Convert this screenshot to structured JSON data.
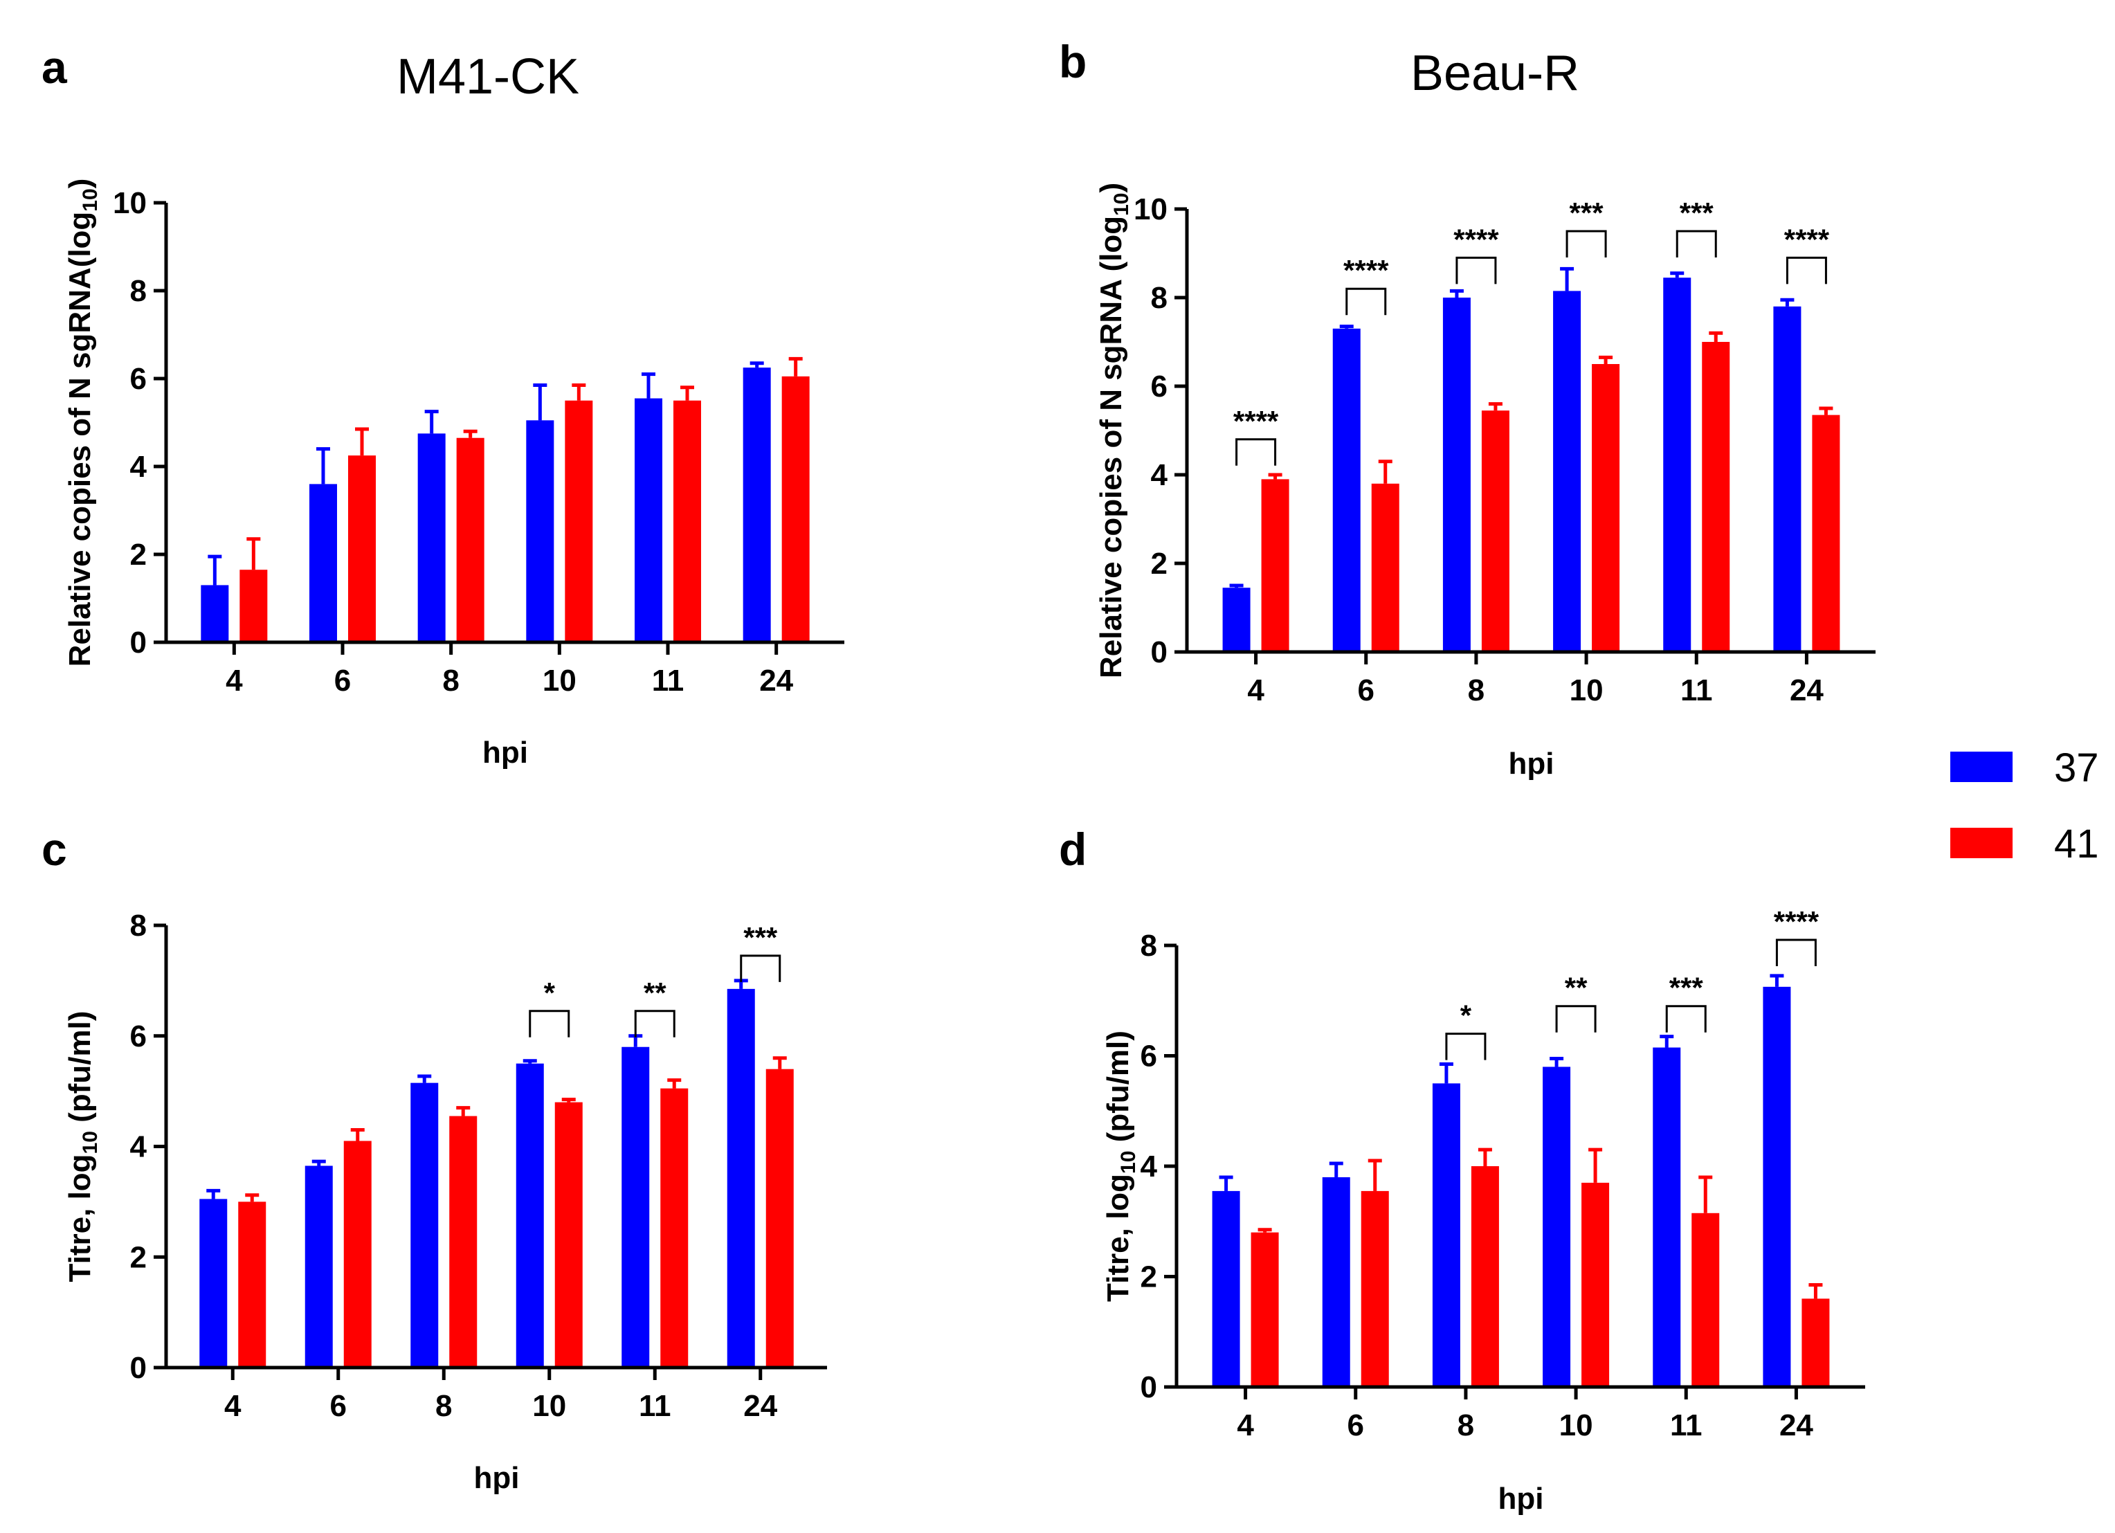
{
  "legend": {
    "items": [
      {
        "label": "37",
        "color": "#0000ff"
      },
      {
        "label": "41",
        "color": "#ff0000"
      }
    ]
  },
  "chart_data": [
    {
      "id": "a",
      "letter": "a",
      "type": "bar",
      "title": "M41-CK",
      "xlabel": "hpi",
      "ylabel": "Relative copies of N sgRNA(log",
      "ylabel_sub": "10",
      "ylabel_end": ")",
      "ylim": [
        0,
        10
      ],
      "yticks": [
        0,
        2,
        4,
        6,
        8,
        10
      ],
      "categories": [
        "4",
        "6",
        "8",
        "10",
        "11",
        "24"
      ],
      "series": [
        {
          "name": "37",
          "color": "#0000ff",
          "values": [
            1.3,
            3.6,
            4.75,
            5.05,
            5.55,
            6.25
          ],
          "errors": [
            0.65,
            0.8,
            0.5,
            0.8,
            0.55,
            0.1
          ]
        },
        {
          "name": "41",
          "color": "#ff0000",
          "values": [
            1.65,
            4.25,
            4.65,
            5.5,
            5.5,
            6.05
          ],
          "errors": [
            0.7,
            0.6,
            0.15,
            0.35,
            0.3,
            0.4
          ]
        }
      ],
      "significance": []
    },
    {
      "id": "b",
      "letter": "b",
      "type": "bar",
      "title": "Beau-R",
      "xlabel": "hpi",
      "ylabel": "Relative copies of N sgRNA (log",
      "ylabel_sub": "10",
      "ylabel_end": ")",
      "ylim": [
        0,
        10
      ],
      "yticks": [
        0,
        2,
        4,
        6,
        8,
        10
      ],
      "categories": [
        "4",
        "6",
        "8",
        "10",
        "11",
        "24"
      ],
      "series": [
        {
          "name": "37",
          "color": "#0000ff",
          "values": [
            1.45,
            7.3,
            8.0,
            8.15,
            8.45,
            7.8
          ],
          "errors": [
            0.05,
            0.05,
            0.15,
            0.5,
            0.1,
            0.15
          ]
        },
        {
          "name": "41",
          "color": "#ff0000",
          "values": [
            3.9,
            3.8,
            5.45,
            6.5,
            7.0,
            5.35
          ],
          "errors": [
            0.1,
            0.5,
            0.15,
            0.15,
            0.2,
            0.15
          ]
        }
      ],
      "significance": [
        {
          "index": 0,
          "label": "****",
          "level": 4.8
        },
        {
          "index": 1,
          "label": "****",
          "level": 8.2
        },
        {
          "index": 2,
          "label": "****",
          "level": 8.9
        },
        {
          "index": 3,
          "label": "***",
          "level": 9.5
        },
        {
          "index": 4,
          "label": "***",
          "level": 9.5
        },
        {
          "index": 5,
          "label": "****",
          "level": 8.9
        }
      ]
    },
    {
      "id": "c",
      "letter": "c",
      "type": "bar",
      "title": "",
      "xlabel": "hpi",
      "ylabel": "Titre, log",
      "ylabel_sub": "10",
      "ylabel_end": " (pfu/ml)",
      "ylim": [
        0,
        8
      ],
      "yticks": [
        0,
        2,
        4,
        6,
        8
      ],
      "categories": [
        "4",
        "6",
        "8",
        "10",
        "11",
        "24"
      ],
      "series": [
        {
          "name": "37",
          "color": "#0000ff",
          "values": [
            3.05,
            3.65,
            5.15,
            5.5,
            5.8,
            6.85
          ],
          "errors": [
            0.15,
            0.08,
            0.12,
            0.05,
            0.2,
            0.15
          ]
        },
        {
          "name": "41",
          "color": "#ff0000",
          "values": [
            3.0,
            4.1,
            4.55,
            4.8,
            5.05,
            5.4
          ],
          "errors": [
            0.12,
            0.2,
            0.15,
            0.05,
            0.15,
            0.2
          ]
        }
      ],
      "significance": [
        {
          "index": 3,
          "label": "*",
          "level": 6.45
        },
        {
          "index": 4,
          "label": "**",
          "level": 6.45
        },
        {
          "index": 5,
          "label": "***",
          "level": 7.45
        }
      ]
    },
    {
      "id": "d",
      "letter": "d",
      "type": "bar",
      "title": "",
      "xlabel": "hpi",
      "ylabel": "Titre, log",
      "ylabel_sub": "10",
      "ylabel_end": " (pfu/ml)",
      "ylim": [
        0,
        8
      ],
      "yticks": [
        0,
        2,
        4,
        6,
        8
      ],
      "categories": [
        "4",
        "6",
        "8",
        "10",
        "11",
        "24"
      ],
      "series": [
        {
          "name": "37",
          "color": "#0000ff",
          "values": [
            3.55,
            3.8,
            5.5,
            5.8,
            6.15,
            7.25
          ],
          "errors": [
            0.25,
            0.25,
            0.35,
            0.15,
            0.2,
            0.2
          ]
        },
        {
          "name": "41",
          "color": "#ff0000",
          "values": [
            2.8,
            3.55,
            4.0,
            3.7,
            3.15,
            1.6
          ],
          "errors": [
            0.05,
            0.55,
            0.3,
            0.6,
            0.65,
            0.25
          ]
        }
      ],
      "significance": [
        {
          "index": 2,
          "label": "*",
          "level": 6.4
        },
        {
          "index": 3,
          "label": "**",
          "level": 6.9
        },
        {
          "index": 4,
          "label": "***",
          "level": 6.9
        },
        {
          "index": 5,
          "label": "****",
          "level": 8.1
        }
      ]
    }
  ]
}
